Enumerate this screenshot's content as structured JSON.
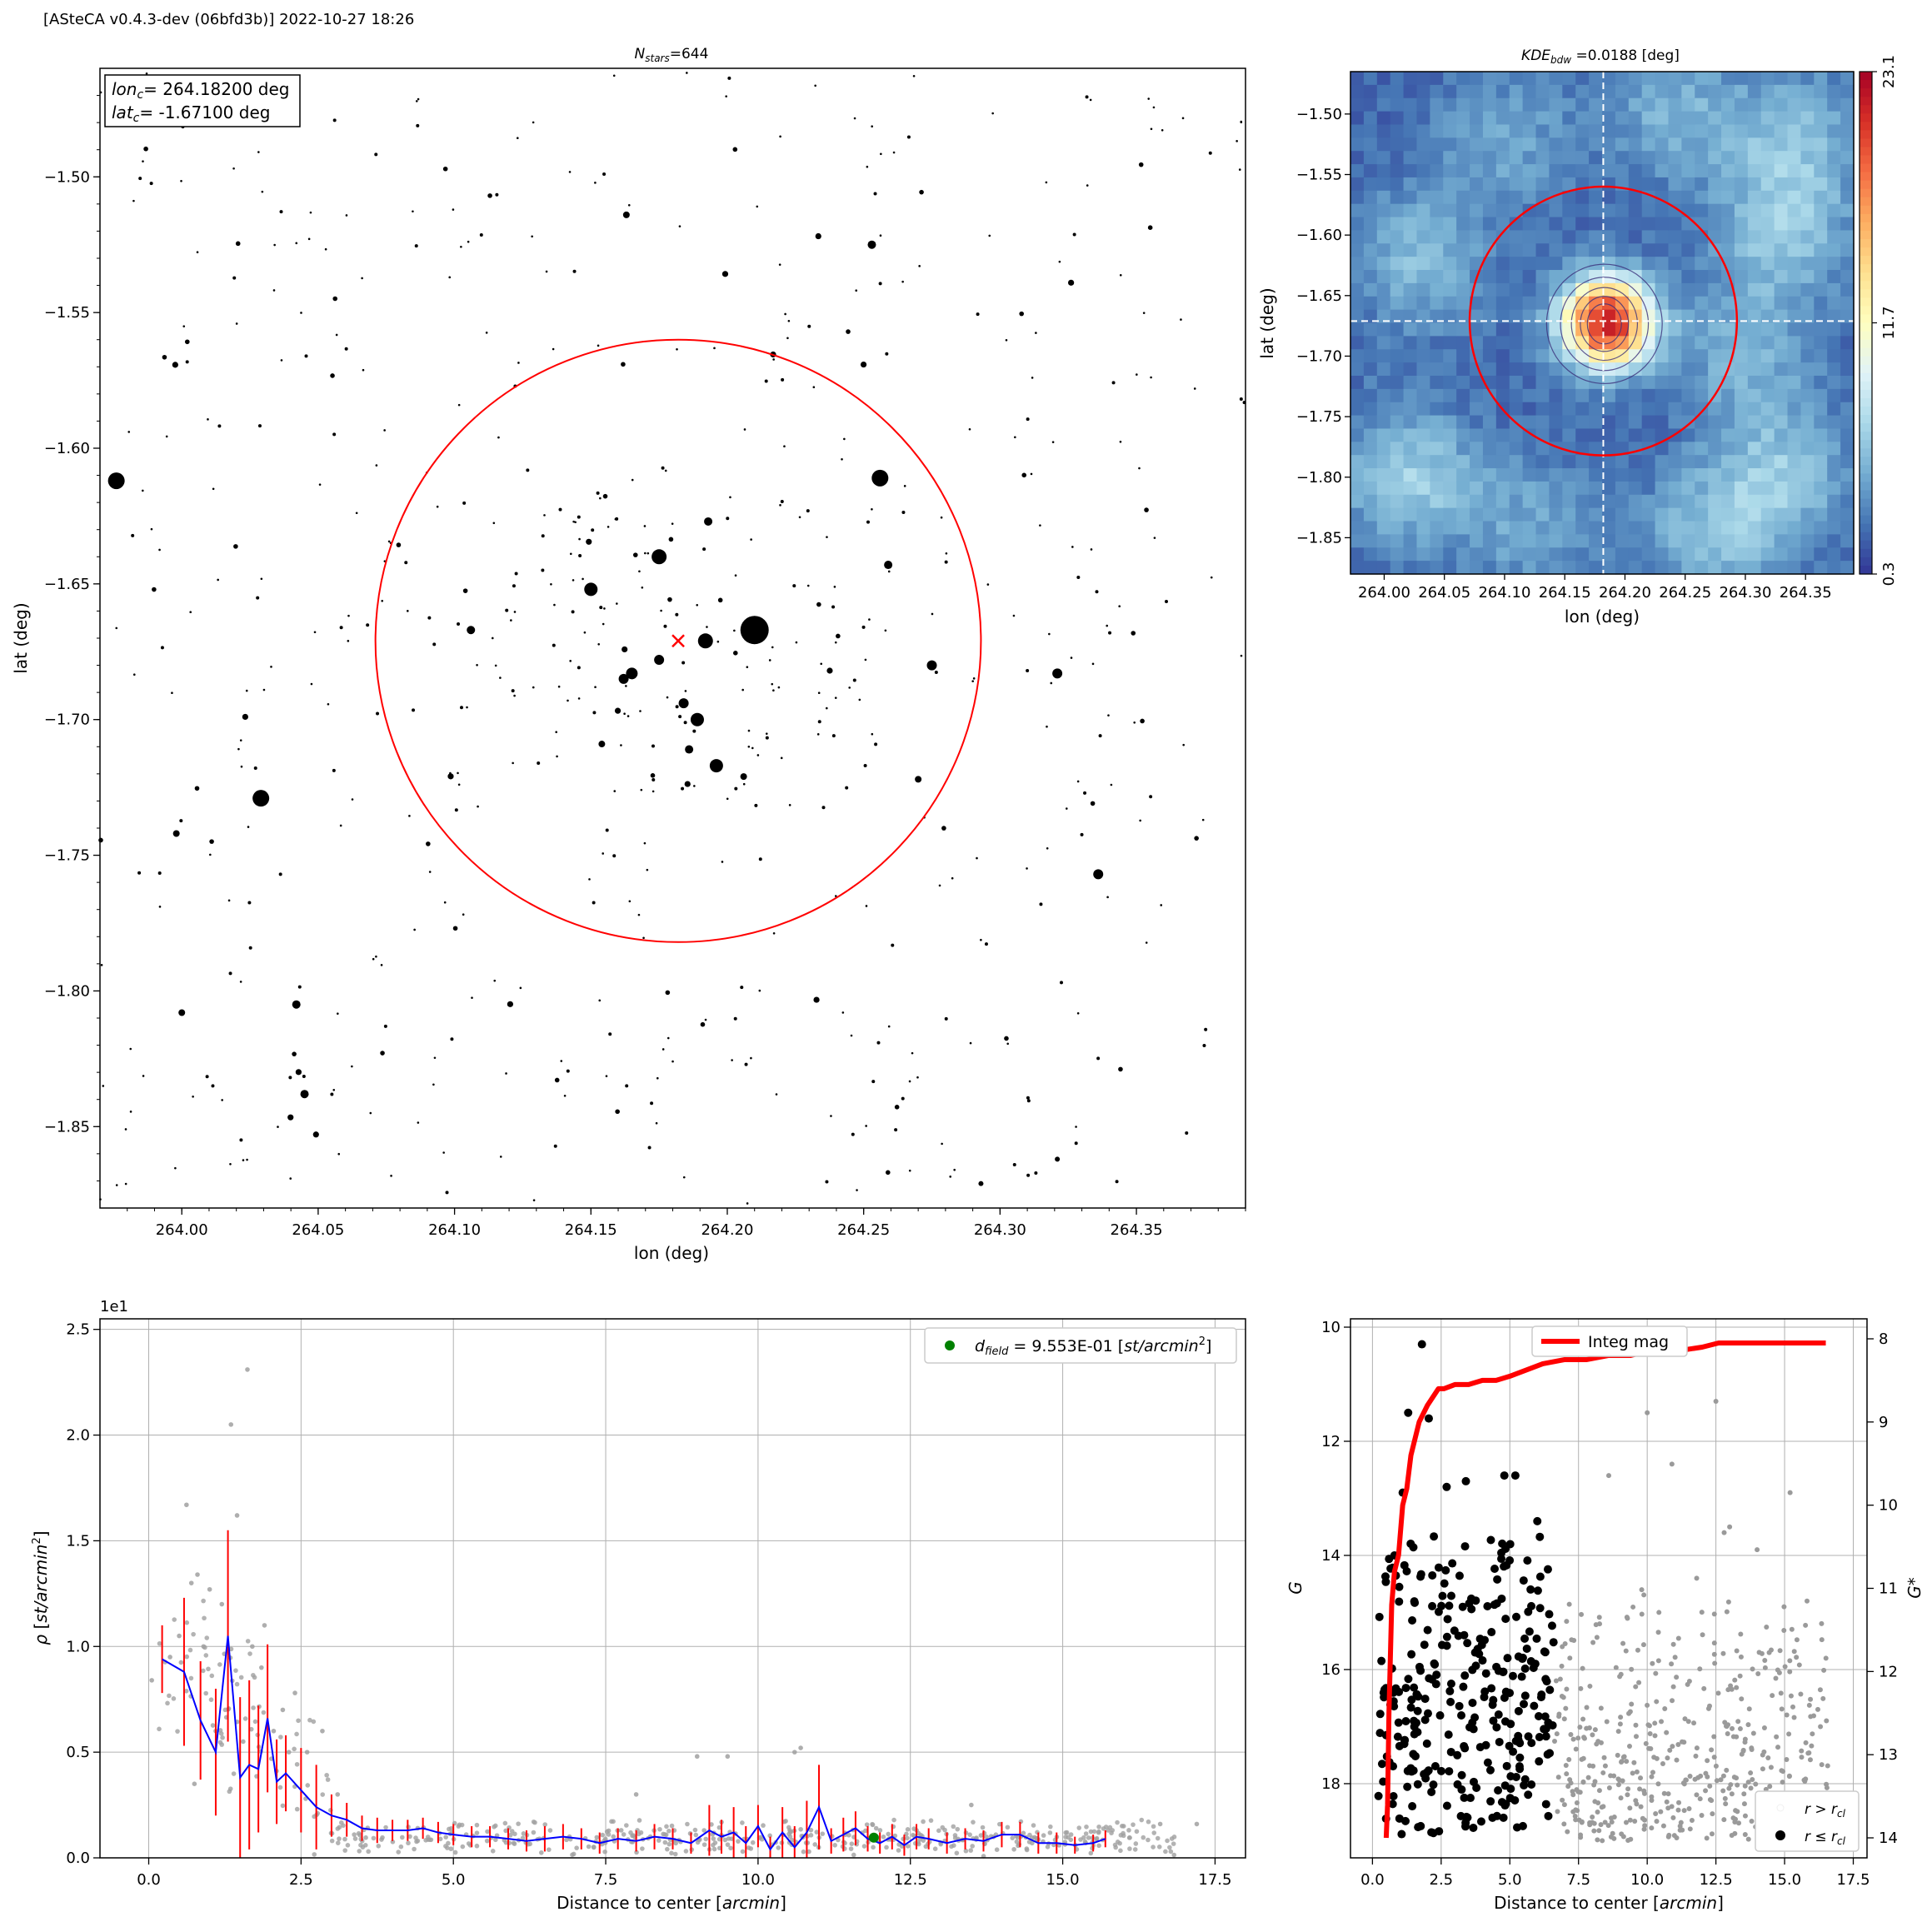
{
  "header": "[ASteCA v0.4.3-dev (06bfd3b)] 2022-10-27 18:26",
  "chart_data": [
    {
      "id": "star-map",
      "type": "scatter",
      "title": "N_stars=644",
      "title_base": "N",
      "title_sub": "stars",
      "title_rest": "=644",
      "xlabel": "lon (deg)",
      "ylabel": "lat (deg)",
      "xlim": [
        263.97,
        264.39
      ],
      "ylim": [
        -1.88,
        -1.46
      ],
      "xticks": [
        264.0,
        264.05,
        264.1,
        264.15,
        264.2,
        264.25,
        264.3,
        264.35
      ],
      "xtick_labels": [
        "264.00",
        "264.05",
        "264.10",
        "264.15",
        "264.20",
        "264.25",
        "264.30",
        "264.35"
      ],
      "yticks": [
        -1.5,
        -1.55,
        -1.6,
        -1.65,
        -1.7,
        -1.75,
        -1.8,
        -1.85
      ],
      "ytick_labels": [
        "−1.50",
        "−1.55",
        "−1.60",
        "−1.65",
        "−1.70",
        "−1.75",
        "−1.80",
        "−1.85"
      ],
      "center": {
        "lon": 264.182,
        "lat": -1.671
      },
      "radius_deg": 0.111,
      "annotation": {
        "lon_base": "lon",
        "lon_sub": "c",
        "lon_text": "= 264.18200 deg",
        "lat_base": "lat",
        "lat_sub": "c",
        "lat_text": "= -1.67100 deg"
      },
      "n_stars": 644,
      "bright_stars": [
        {
          "lon": 264.21,
          "lat": -1.667,
          "size": 17
        },
        {
          "lon": 263.976,
          "lat": -1.612,
          "size": 10
        },
        {
          "lon": 264.256,
          "lat": -1.611,
          "size": 10
        },
        {
          "lon": 264.029,
          "lat": -1.729,
          "size": 10
        },
        {
          "lon": 264.175,
          "lat": -1.64,
          "size": 9
        },
        {
          "lon": 264.15,
          "lat": -1.652,
          "size": 8
        },
        {
          "lon": 264.192,
          "lat": -1.671,
          "size": 9
        },
        {
          "lon": 264.189,
          "lat": -1.7,
          "size": 8
        },
        {
          "lon": 264.196,
          "lat": -1.717,
          "size": 8
        },
        {
          "lon": 264.165,
          "lat": -1.683,
          "size": 7
        },
        {
          "lon": 264.162,
          "lat": -1.685,
          "size": 6
        },
        {
          "lon": 264.175,
          "lat": -1.678,
          "size": 6
        },
        {
          "lon": 264.184,
          "lat": -1.694,
          "size": 6
        },
        {
          "lon": 264.186,
          "lat": -1.711,
          "size": 5
        },
        {
          "lon": 264.259,
          "lat": -1.643,
          "size": 5
        },
        {
          "lon": 264.275,
          "lat": -1.68,
          "size": 6
        },
        {
          "lon": 264.321,
          "lat": -1.683,
          "size": 6
        },
        {
          "lon": 264.336,
          "lat": -1.757,
          "size": 6
        },
        {
          "lon": 264.042,
          "lat": -1.805,
          "size": 5
        },
        {
          "lon": 264.045,
          "lat": -1.838,
          "size": 5
        },
        {
          "lon": 264.163,
          "lat": -1.514,
          "size": 4
        },
        {
          "lon": 264.253,
          "lat": -1.525,
          "size": 5
        },
        {
          "lon": 263.998,
          "lat": -1.742,
          "size": 4
        },
        {
          "lon": 264.0,
          "lat": -1.808,
          "size": 4
        },
        {
          "lon": 264.154,
          "lat": -1.709,
          "size": 4
        },
        {
          "lon": 264.106,
          "lat": -1.667,
          "size": 5
        },
        {
          "lon": 264.193,
          "lat": -1.627,
          "size": 5
        },
        {
          "lon": 264.176,
          "lat": -1.64,
          "size": 4
        },
        {
          "lon": 264.206,
          "lat": -1.721,
          "size": 4
        },
        {
          "lon": 264.27,
          "lat": -1.722,
          "size": 4
        },
        {
          "lon": 264.293,
          "lat": -1.871,
          "size": 3
        },
        {
          "lon": 264.321,
          "lat": -1.862,
          "size": 3
        }
      ],
      "center_marker_color": "#ff0000",
      "circle_color": "#ff0000"
    },
    {
      "id": "kde-map",
      "type": "heatmap",
      "title_base": "KDE",
      "title_sub": "bdw",
      "title_rest": " =0.0188 [deg]",
      "xlabel": "lon (deg)",
      "ylabel": "lat (deg)",
      "xlim": [
        263.972,
        264.39
      ],
      "ylim": [
        -1.88,
        -1.465
      ],
      "xticks": [
        264.0,
        264.05,
        264.1,
        264.15,
        264.2,
        264.25,
        264.3,
        264.35
      ],
      "xtick_labels": [
        "264.00",
        "264.05",
        "264.10",
        "264.15",
        "264.20",
        "264.25",
        "264.30",
        "264.35"
      ],
      "yticks": [
        -1.5,
        -1.55,
        -1.6,
        -1.65,
        -1.7,
        -1.75,
        -1.8,
        -1.85
      ],
      "ytick_labels": [
        "−1.50",
        "−1.55",
        "−1.60",
        "−1.65",
        "−1.70",
        "−1.75",
        "−1.80",
        "−1.85"
      ],
      "colorbar_ticks": [
        "0.3",
        "11.7",
        "23.1"
      ],
      "colorbar_range": [
        0.3,
        23.1
      ],
      "colormap": "RdYlBu_r",
      "peak": {
        "lon": 264.185,
        "lat": -1.672,
        "value": 23.1
      },
      "background_blobs": [
        {
          "lon": 264.02,
          "lat": -1.8,
          "amp": 4.5
        },
        {
          "lon": 264.03,
          "lat": -1.62,
          "amp": 3.5
        },
        {
          "lon": 264.33,
          "lat": -1.6,
          "amp": 4
        },
        {
          "lon": 264.33,
          "lat": -1.8,
          "amp": 4
        },
        {
          "lon": 264.34,
          "lat": -1.52,
          "amp": 3.5
        },
        {
          "lon": 264.24,
          "lat": -1.5,
          "amp": 3
        },
        {
          "lon": 264.27,
          "lat": -1.85,
          "amp": 3.5
        },
        {
          "lon": 264.12,
          "lat": -1.84,
          "amp": 2.5
        },
        {
          "lon": 264.1,
          "lat": -1.52,
          "amp": 2.5
        },
        {
          "lon": 264.3,
          "lat": -1.7,
          "amp": 3
        }
      ],
      "crosshair": {
        "lon": 264.182,
        "lat": -1.671
      },
      "circle": {
        "lon": 264.182,
        "lat": -1.671,
        "radius": 0.111
      }
    },
    {
      "id": "density-profile",
      "type": "scatter",
      "xlabel": "Distance to center [arcmin]",
      "xlabel_main": "Distance to center [",
      "xlabel_italic": "arcmin",
      "xlabel_end": "]",
      "ylabel": "ρ [st/arcmin²]",
      "offset_text": "1e1",
      "xlim": [
        -0.8,
        18.0
      ],
      "ylim": [
        0,
        2.55
      ],
      "xticks": [
        0.0,
        2.5,
        5.0,
        7.5,
        10.0,
        12.5,
        15.0,
        17.5
      ],
      "xtick_labels": [
        "0.0",
        "2.5",
        "5.0",
        "7.5",
        "10.0",
        "12.5",
        "15.0",
        "17.5"
      ],
      "yticks": [
        0.0,
        0.5,
        1.0,
        1.5,
        2.0,
        2.5
      ],
      "ytick_labels": [
        "0.0",
        "0.5",
        "1.0",
        "1.5",
        "2.0",
        "2.5"
      ],
      "legend": "d_field = 9.553E-01 [st/arcmin²]",
      "legend_base": "d",
      "legend_sub": "field",
      "legend_mid": " =  9.553E-01 [",
      "legend_italic": "st/arcmin",
      "legend_sup": "2",
      "legend_end": "]",
      "legend_position": "top-right",
      "field_density": 0.0955,
      "field_point": {
        "x": 11.9,
        "y": 0.0955
      },
      "profile": {
        "x": [
          0.22,
          0.58,
          0.85,
          1.1,
          1.3,
          1.5,
          1.65,
          1.8,
          1.95,
          2.1,
          2.25,
          2.5,
          2.75,
          3.0,
          3.25,
          3.5,
          3.75,
          4.0,
          4.25,
          4.5,
          4.75,
          5.0,
          5.3,
          5.6,
          5.9,
          6.2,
          6.5,
          6.8,
          7.1,
          7.4,
          7.7,
          8.0,
          8.3,
          8.6,
          8.9,
          9.2,
          9.4,
          9.6,
          9.8,
          10.0,
          10.2,
          10.4,
          10.6,
          10.8,
          11.0,
          11.2,
          11.4,
          11.6,
          11.8,
          12.0,
          12.2,
          12.4,
          12.6,
          12.8,
          13.1,
          13.4,
          13.7,
          14.0,
          14.3,
          14.6,
          14.9,
          15.2,
          15.5,
          15.7
        ],
        "y": [
          0.94,
          0.88,
          0.65,
          0.5,
          1.05,
          0.38,
          0.44,
          0.42,
          0.66,
          0.36,
          0.4,
          0.32,
          0.24,
          0.2,
          0.18,
          0.14,
          0.13,
          0.13,
          0.13,
          0.14,
          0.12,
          0.11,
          0.1,
          0.1,
          0.09,
          0.08,
          0.09,
          0.1,
          0.09,
          0.07,
          0.09,
          0.08,
          0.1,
          0.09,
          0.07,
          0.13,
          0.1,
          0.12,
          0.07,
          0.15,
          0.04,
          0.12,
          0.05,
          0.12,
          0.24,
          0.08,
          0.11,
          0.14,
          0.09,
          0.07,
          0.1,
          0.06,
          0.1,
          0.09,
          0.07,
          0.09,
          0.08,
          0.11,
          0.11,
          0.07,
          0.07,
          0.06,
          0.07,
          0.09
        ],
        "err": [
          0.16,
          0.35,
          0.28,
          0.3,
          0.5,
          0.38,
          0.4,
          0.3,
          0.35,
          0.2,
          0.18,
          0.2,
          0.2,
          0.1,
          0.08,
          0.06,
          0.06,
          0.05,
          0.05,
          0.05,
          0.05,
          0.05,
          0.05,
          0.05,
          0.05,
          0.05,
          0.06,
          0.06,
          0.05,
          0.05,
          0.05,
          0.05,
          0.06,
          0.05,
          0.05,
          0.12,
          0.08,
          0.12,
          0.08,
          0.1,
          0.06,
          0.12,
          0.1,
          0.15,
          0.2,
          0.06,
          0.08,
          0.08,
          0.06,
          0.05,
          0.06,
          0.05,
          0.06,
          0.05,
          0.05,
          0.05,
          0.05,
          0.06,
          0.06,
          0.05,
          0.05,
          0.04,
          0.04,
          0.04
        ]
      },
      "scatter_samples": [
        {
          "x": 0.05,
          "y": 0.84
        },
        {
          "x": 0.35,
          "y": 0.95
        },
        {
          "x": 0.5,
          "y": 1.05
        },
        {
          "x": 0.62,
          "y": 1.67
        },
        {
          "x": 0.7,
          "y": 1.3
        },
        {
          "x": 0.8,
          "y": 1.34
        },
        {
          "x": 0.9,
          "y": 1.0
        },
        {
          "x": 1.0,
          "y": 1.27
        },
        {
          "x": 1.2,
          "y": 1.2
        },
        {
          "x": 1.35,
          "y": 2.05
        },
        {
          "x": 1.45,
          "y": 1.62
        },
        {
          "x": 1.62,
          "y": 2.31
        },
        {
          "x": 1.7,
          "y": 1.0
        },
        {
          "x": 1.85,
          "y": 0.9
        },
        {
          "x": 1.9,
          "y": 1.1
        },
        {
          "x": 2.05,
          "y": 0.6
        },
        {
          "x": 2.2,
          "y": 0.7
        },
        {
          "x": 2.4,
          "y": 0.78
        },
        {
          "x": 2.6,
          "y": 0.5
        },
        {
          "x": 2.85,
          "y": 0.6
        },
        {
          "x": 0.75,
          "y": 0.35
        },
        {
          "x": 1.1,
          "y": 0.6
        },
        {
          "x": 1.55,
          "y": 0.55
        },
        {
          "x": 2.3,
          "y": 0.5
        },
        {
          "x": 3.1,
          "y": 0.3
        },
        {
          "x": 9.0,
          "y": 0.48
        },
        {
          "x": 9.5,
          "y": 0.48
        },
        {
          "x": 10.6,
          "y": 0.5
        },
        {
          "x": 10.7,
          "y": 0.52
        },
        {
          "x": 16.0,
          "y": 0.15
        },
        {
          "x": 16.6,
          "y": 0.16
        },
        {
          "x": 17.2,
          "y": 0.16
        },
        {
          "x": 13.5,
          "y": 0.25
        },
        {
          "x": 8.0,
          "y": 0.3
        }
      ],
      "colors": {
        "points": "#a0a0a0",
        "line": "#0000ff",
        "errbar": "#ff0000",
        "field": "#008000"
      }
    },
    {
      "id": "mag-distance",
      "type": "scatter",
      "xlabel": "Distance to center [arcmin]",
      "xlabel_main": "Distance to center [",
      "xlabel_italic": "arcmin",
      "xlabel_end": "]",
      "ylabel_left": "G",
      "ylabel_right": "G*",
      "xlim": [
        -0.8,
        18.0
      ],
      "ylim_left": [
        10.0,
        19.3
      ],
      "ylim_right": [
        8.0,
        14.0
      ],
      "xticks": [
        0.0,
        2.5,
        5.0,
        7.5,
        10.0,
        12.5,
        15.0,
        17.5
      ],
      "xtick_labels": [
        "0.0",
        "2.5",
        "5.0",
        "7.5",
        "10.0",
        "12.5",
        "15.0",
        "17.5"
      ],
      "yticks_left": [
        10,
        12,
        14,
        16,
        18
      ],
      "ytick_labels_left": [
        "10",
        "12",
        "14",
        "16",
        "18"
      ],
      "yticks_right": [
        8,
        9,
        10,
        11,
        12,
        13,
        14
      ],
      "ytick_labels_right": [
        "8",
        "9",
        "10",
        "11",
        "12",
        "13",
        "14"
      ],
      "legend_top": "Integ mag",
      "legend_bottom": [
        "r > r_cl",
        "r ≤ r_cl"
      ],
      "legend_r_out": "r > r",
      "legend_r_in": "r ≤ r",
      "legend_sub": "cl",
      "legend_positions": [
        "top-center",
        "bottom-right"
      ],
      "integ_mag": {
        "x": [
          0.5,
          0.55,
          0.6,
          0.7,
          0.8,
          0.95,
          1.1,
          1.25,
          1.4,
          1.55,
          1.7,
          1.85,
          2.0,
          2.2,
          2.4,
          2.6,
          3.0,
          3.5,
          4.0,
          4.5,
          5.0,
          5.4,
          5.8,
          6.2,
          7.0,
          7.8,
          8.6,
          9.0,
          9.4,
          10.0,
          10.5,
          11.0,
          12.0,
          12.6,
          13.0,
          14.0,
          15.0,
          16.5
        ],
        "y": [
          14.0,
          13.6,
          12.5,
          11.2,
          10.8,
          10.6,
          10.0,
          9.8,
          9.4,
          9.2,
          9.0,
          8.9,
          8.8,
          8.7,
          8.6,
          8.6,
          8.55,
          8.55,
          8.5,
          8.5,
          8.45,
          8.4,
          8.35,
          8.3,
          8.25,
          8.25,
          8.2,
          8.2,
          8.2,
          8.15,
          8.15,
          8.15,
          8.1,
          8.05,
          8.05,
          8.05,
          8.05,
          8.05
        ]
      },
      "r_out_sample": [
        {
          "x": 10.0,
          "y": 11.5
        },
        {
          "x": 12.5,
          "y": 11.3
        },
        {
          "x": 8.6,
          "y": 12.6
        },
        {
          "x": 10.9,
          "y": 12.4
        },
        {
          "x": 13.0,
          "y": 13.5
        },
        {
          "x": 14.0,
          "y": 13.9
        },
        {
          "x": 12.8,
          "y": 13.6
        },
        {
          "x": 15.2,
          "y": 12.9
        },
        {
          "x": 9.8,
          "y": 14.6
        },
        {
          "x": 11.8,
          "y": 14.4
        }
      ],
      "r_in_sample": [
        {
          "x": 1.8,
          "y": 10.3
        },
        {
          "x": 2.05,
          "y": 11.6
        },
        {
          "x": 1.3,
          "y": 11.5
        },
        {
          "x": 2.7,
          "y": 12.8
        },
        {
          "x": 3.4,
          "y": 12.7
        },
        {
          "x": 4.8,
          "y": 12.6
        },
        {
          "x": 5.2,
          "y": 12.6
        },
        {
          "x": 6.0,
          "y": 13.4
        },
        {
          "x": 0.8,
          "y": 14.0
        },
        {
          "x": 1.1,
          "y": 12.9
        }
      ],
      "colors": {
        "r_out": "#9a9a9a",
        "r_in": "#000000",
        "integ": "#ff0000"
      }
    }
  ]
}
